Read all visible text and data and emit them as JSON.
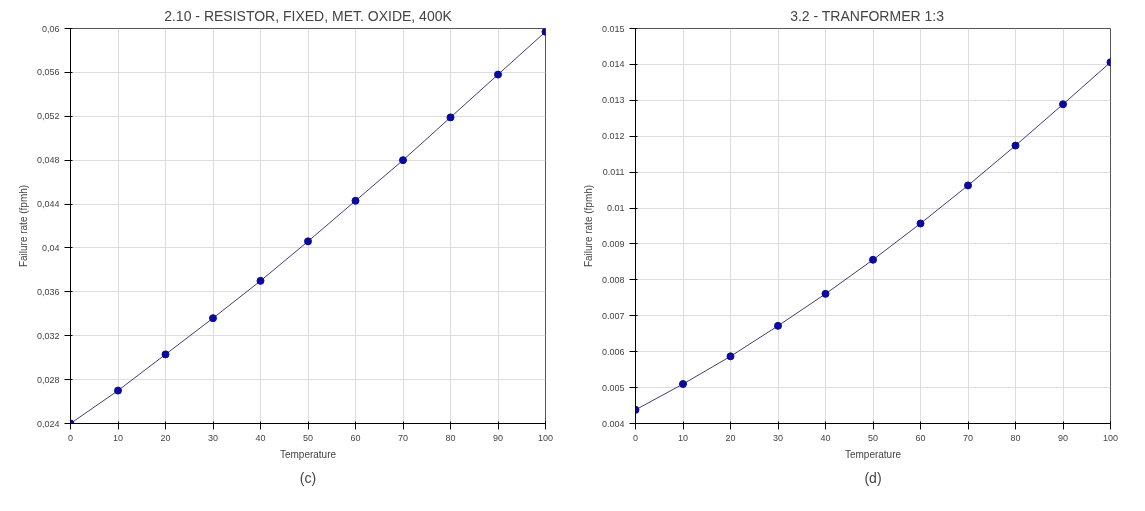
{
  "chart_data": [
    {
      "type": "line",
      "title": "2.10 - RESISTOR, FIXED, MET. OXIDE, 400K",
      "xlabel": "Temperature",
      "ylabel": "Failure rate (fpmh)",
      "annotations": [
        "(c)"
      ],
      "x": [
        0,
        10,
        20,
        30,
        40,
        50,
        60,
        70,
        80,
        90,
        100
      ],
      "series": [
        {
          "color": "#0a0a9c",
          "values": [
            0.024,
            0.027,
            0.0303,
            0.0336,
            0.037,
            0.0406,
            0.0443,
            0.048,
            0.0519,
            0.0558,
            0.0597
          ]
        }
      ],
      "xlim": [
        0,
        100
      ],
      "xticks": [
        0,
        10,
        20,
        30,
        40,
        50,
        60,
        70,
        80,
        90,
        100
      ],
      "ylim": [
        0.024,
        0.06
      ],
      "yticks": [
        {
          "value": 0.024,
          "label": "0,024"
        },
        {
          "value": 0.028,
          "label": "0,028"
        },
        {
          "value": 0.032,
          "label": "0,032"
        },
        {
          "value": 0.036,
          "label": "0,036"
        },
        {
          "value": 0.04,
          "label": "0,04"
        },
        {
          "value": 0.044,
          "label": "0,044"
        },
        {
          "value": 0.048,
          "label": "0,048"
        },
        {
          "value": 0.052,
          "label": "0,052"
        },
        {
          "value": 0.056,
          "label": "0,056"
        },
        {
          "value": 0.06,
          "label": "0,06"
        }
      ],
      "grid": true,
      "marker": "circle",
      "line_style": "solid"
    },
    {
      "type": "line",
      "title": "3.2 - TRANFORMER    1:3",
      "xlabel": "Temperature",
      "ylabel": "Failure rate (fpmh)",
      "annotations": [
        "(d)"
      ],
      "x": [
        0,
        10,
        20,
        30,
        40,
        50,
        60,
        70,
        80,
        90,
        100
      ],
      "series": [
        {
          "color": "#0a0a9c",
          "values": [
            0.00438,
            0.0051,
            0.00587,
            0.00672,
            0.00761,
            0.00856,
            0.00957,
            0.01063,
            0.01174,
            0.01289,
            0.01406
          ]
        }
      ],
      "xlim": [
        0,
        100
      ],
      "xticks": [
        0,
        10,
        20,
        30,
        40,
        50,
        60,
        70,
        80,
        90,
        100
      ],
      "ylim": [
        0.004,
        0.015
      ],
      "yticks": [
        0.004,
        0.005,
        0.006,
        0.007,
        0.008,
        0.009,
        0.01,
        0.011,
        0.012,
        0.013,
        0.014,
        0.015
      ],
      "grid": true,
      "marker": "circle",
      "line_style": "solid"
    }
  ]
}
